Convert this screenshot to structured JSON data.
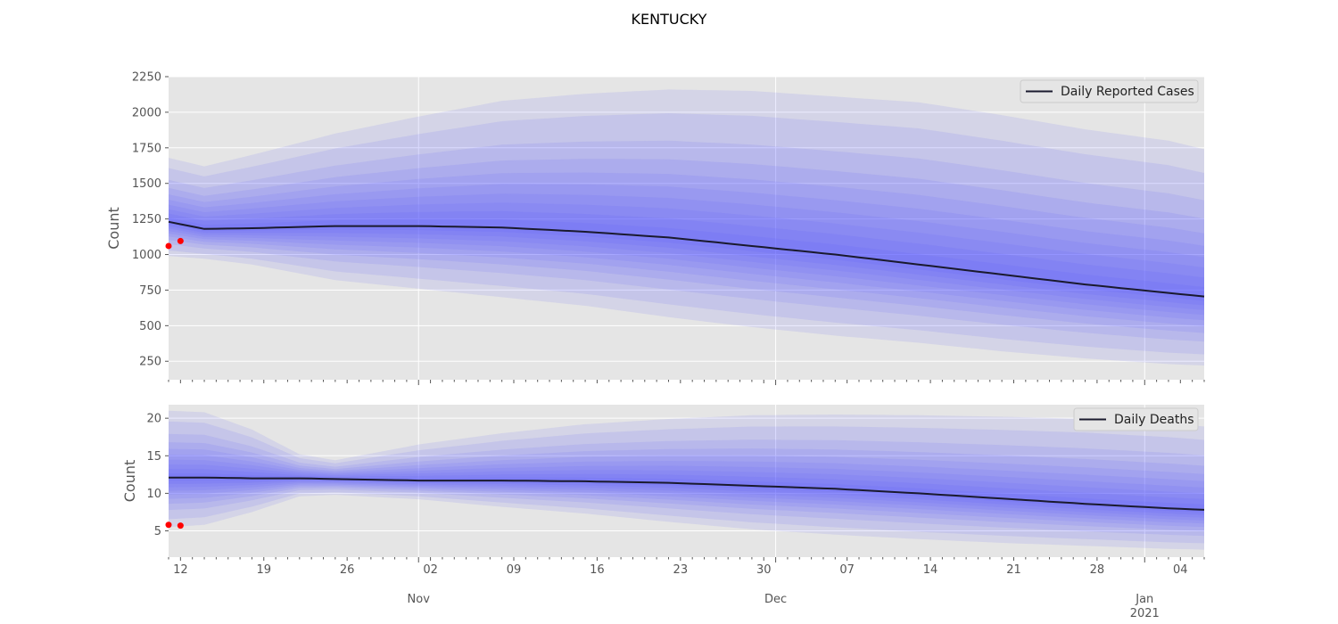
{
  "title": "KENTUCKY",
  "colors": {
    "panel_bg": "#e5e5e5",
    "grid": "#ffffff",
    "band": "#5555ff",
    "median": "#1a1a2e",
    "observed": "#ff0000",
    "tick_text": "#555555"
  },
  "x_axis": {
    "start": "2020-10-11",
    "end": "2021-01-06",
    "minor_ticks": [
      "12",
      "19",
      "26",
      "02",
      "09",
      "16",
      "23",
      "30",
      "07",
      "14",
      "21",
      "28",
      "04"
    ],
    "major_ticks": [
      {
        "date": "2020-11-01",
        "label": "Nov"
      },
      {
        "date": "2020-12-01",
        "label": "Dec"
      },
      {
        "date": "2021-01-01",
        "label": "Jan",
        "sublabel": "2021"
      }
    ]
  },
  "chart_data": [
    {
      "type": "area",
      "panel": "cases",
      "ylabel": "Count",
      "ylim": [
        120,
        2250
      ],
      "yticks": [
        250,
        500,
        750,
        1000,
        1250,
        1500,
        1750,
        2000,
        2250
      ],
      "legend": {
        "label": "Daily Reported Cases",
        "position": "top-right"
      },
      "grid": true,
      "quantile_levels": [
        0.025,
        0.05,
        0.1,
        0.15,
        0.2,
        0.25,
        0.3,
        0.35,
        0.4,
        0.45,
        0.5,
        0.55,
        0.6,
        0.65,
        0.7,
        0.75,
        0.8,
        0.85,
        0.9,
        0.95,
        0.975
      ],
      "x": [
        "2020-10-11",
        "2020-10-14",
        "2020-10-18",
        "2020-10-25",
        "2020-11-01",
        "2020-11-08",
        "2020-11-15",
        "2020-11-22",
        "2020-11-29",
        "2020-12-06",
        "2020-12-13",
        "2020-12-20",
        "2020-12-27",
        "2021-01-03",
        "2021-01-06"
      ],
      "median": [
        1230,
        1180,
        1185,
        1200,
        1200,
        1190,
        1160,
        1120,
        1060,
        1000,
        930,
        860,
        790,
        730,
        705
      ],
      "lower_95": [
        990,
        970,
        930,
        820,
        760,
        700,
        640,
        560,
        490,
        430,
        380,
        320,
        270,
        230,
        220
      ],
      "upper_95": [
        1680,
        1620,
        1700,
        1850,
        1970,
        2080,
        2130,
        2160,
        2150,
        2110,
        2070,
        1980,
        1880,
        1800,
        1740
      ],
      "observed": [
        {
          "x": "2020-10-11",
          "y": 1060
        },
        {
          "x": "2020-10-12",
          "y": 1095
        }
      ]
    },
    {
      "type": "area",
      "panel": "deaths",
      "ylabel": "Count",
      "ylim": [
        1.5,
        21.8
      ],
      "yticks": [
        5,
        10,
        15,
        20
      ],
      "legend": {
        "label": "Daily Deaths",
        "position": "top-right"
      },
      "grid": true,
      "quantile_levels": [
        0.025,
        0.05,
        0.1,
        0.15,
        0.2,
        0.25,
        0.3,
        0.35,
        0.4,
        0.45,
        0.5,
        0.55,
        0.6,
        0.65,
        0.7,
        0.75,
        0.8,
        0.85,
        0.9,
        0.95,
        0.975
      ],
      "x": [
        "2020-10-11",
        "2020-10-14",
        "2020-10-18",
        "2020-10-22",
        "2020-10-25",
        "2020-11-01",
        "2020-11-08",
        "2020-11-15",
        "2020-11-22",
        "2020-11-29",
        "2020-12-06",
        "2020-12-13",
        "2020-12-20",
        "2020-12-27",
        "2021-01-03",
        "2021-01-06"
      ],
      "median": [
        12.1,
        12.1,
        12.0,
        12.0,
        11.9,
        11.7,
        11.7,
        11.6,
        11.4,
        11.0,
        10.6,
        10.0,
        9.3,
        8.6,
        8.0,
        7.8
      ],
      "lower_95": [
        5.5,
        5.8,
        7.5,
        9.6,
        9.8,
        9.2,
        8.2,
        7.3,
        6.2,
        5.2,
        4.5,
        3.9,
        3.4,
        3.0,
        2.6,
        2.5
      ],
      "upper_95": [
        21.0,
        20.8,
        18.5,
        15.2,
        14.4,
        16.5,
        18.0,
        19.2,
        19.9,
        20.4,
        20.5,
        20.4,
        20.2,
        19.9,
        19.3,
        18.9
      ],
      "observed": [
        {
          "x": "2020-10-11",
          "y": 5.8
        },
        {
          "x": "2020-10-12",
          "y": 5.7
        }
      ]
    }
  ]
}
